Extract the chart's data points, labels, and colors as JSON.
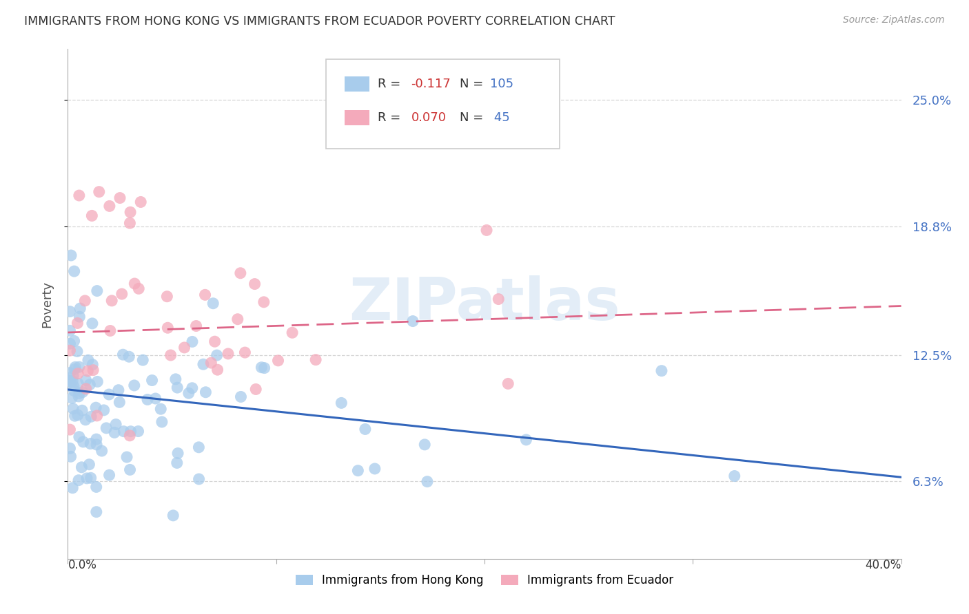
{
  "title": "IMMIGRANTS FROM HONG KONG VS IMMIGRANTS FROM ECUADOR POVERTY CORRELATION CHART",
  "source": "Source: ZipAtlas.com",
  "ylabel": "Poverty",
  "y_ticks": [
    6.3,
    12.5,
    18.8,
    25.0
  ],
  "x_range": [
    0.0,
    40.0
  ],
  "y_range": [
    2.5,
    27.5
  ],
  "blue_R": -0.117,
  "blue_N": 105,
  "pink_R": 0.07,
  "pink_N": 45,
  "blue_color": "#A8CCEC",
  "pink_color": "#F4AABB",
  "blue_line_color": "#3366BB",
  "pink_line_color": "#DD6688",
  "blue_line_start_y": 10.8,
  "blue_line_end_y": 6.5,
  "pink_line_start_y": 13.6,
  "pink_line_end_y": 14.9,
  "legend_label_blue": "Immigrants from Hong Kong",
  "legend_label_pink": "Immigrants from Ecuador",
  "watermark": "ZIPatlas",
  "right_label_color": "#4472C4",
  "grid_color": "#CCCCCC",
  "title_color": "#333333",
  "source_color": "#999999"
}
